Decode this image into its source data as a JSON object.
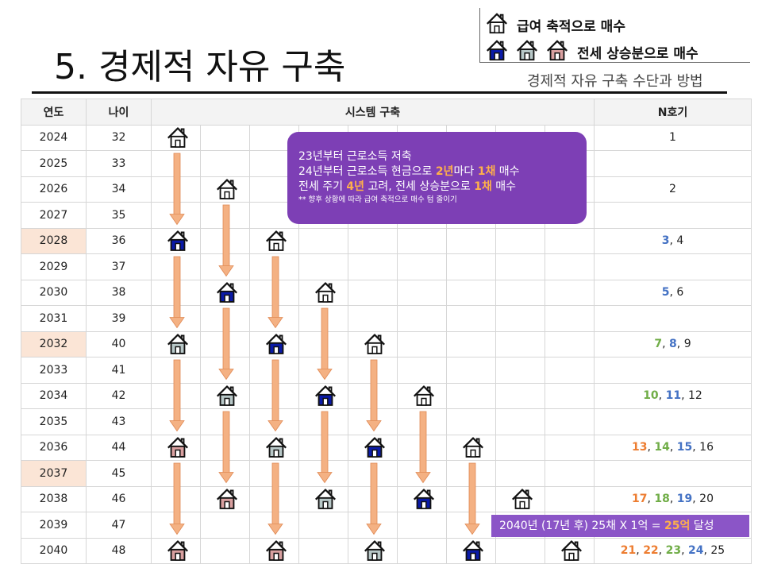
{
  "slide": {
    "title": "5. 경제적 자유 구축",
    "subtitle": "경제적 자유 구축 수단과 방법"
  },
  "legend": {
    "row1_text": "급여 축적으로 매수",
    "row2_text": "전세 상승분으로 매수"
  },
  "table": {
    "headers": {
      "year": "연도",
      "age": "나이",
      "system": "시스템 구축",
      "n": "N호기"
    },
    "rows": [
      {
        "year": "2024",
        "age": "32",
        "hl": false,
        "n": [
          [
            "1",
            "k"
          ]
        ]
      },
      {
        "year": "2025",
        "age": "33",
        "hl": false,
        "n": []
      },
      {
        "year": "2026",
        "age": "34",
        "hl": false,
        "n": [
          [
            "2",
            "k"
          ]
        ]
      },
      {
        "year": "2027",
        "age": "35",
        "hl": false,
        "n": []
      },
      {
        "year": "2028",
        "age": "36",
        "hl": true,
        "n": [
          [
            "3",
            "bl"
          ],
          [
            "4",
            "k"
          ]
        ]
      },
      {
        "year": "2029",
        "age": "37",
        "hl": false,
        "n": []
      },
      {
        "year": "2030",
        "age": "38",
        "hl": false,
        "n": [
          [
            "5",
            "bl"
          ],
          [
            "6",
            "k"
          ]
        ]
      },
      {
        "year": "2031",
        "age": "39",
        "hl": false,
        "n": []
      },
      {
        "year": "2032",
        "age": "40",
        "hl": true,
        "n": [
          [
            "7",
            "gr"
          ],
          [
            "8",
            "bl"
          ],
          [
            "9",
            "k"
          ]
        ]
      },
      {
        "year": "2033",
        "age": "41",
        "hl": false,
        "n": []
      },
      {
        "year": "2034",
        "age": "42",
        "hl": false,
        "n": [
          [
            "10",
            "gr"
          ],
          [
            "11",
            "bl"
          ],
          [
            "12",
            "k"
          ]
        ]
      },
      {
        "year": "2035",
        "age": "43",
        "hl": false,
        "n": []
      },
      {
        "year": "2036",
        "age": "44",
        "hl": false,
        "n": [
          [
            "13",
            "or"
          ],
          [
            "14",
            "gr"
          ],
          [
            "15",
            "bl"
          ],
          [
            "16",
            "k"
          ]
        ]
      },
      {
        "year": "2037",
        "age": "45",
        "hl": true,
        "n": []
      },
      {
        "year": "2038",
        "age": "46",
        "hl": false,
        "n": [
          [
            "17",
            "or"
          ],
          [
            "18",
            "gr"
          ],
          [
            "19",
            "bl"
          ],
          [
            "20",
            "k"
          ]
        ]
      },
      {
        "year": "2039",
        "age": "47",
        "hl": false,
        "n": []
      },
      {
        "year": "2040",
        "age": "48",
        "hl": false,
        "n": [
          [
            "21",
            "or"
          ],
          [
            "22",
            "or"
          ],
          [
            "23",
            "gr"
          ],
          [
            "24",
            "bl"
          ],
          [
            "25",
            "k"
          ]
        ]
      }
    ]
  },
  "note": {
    "line1": "23년부터 근로소득 저축",
    "line2_a": "24년부터 근로소득 현금으로 ",
    "line2_b": "2년",
    "line2_c": "마다 ",
    "line2_d": "1채",
    "line2_e": " 매수",
    "line3_a": "전세 주기 ",
    "line3_b": "4년",
    "line3_c": " 고려, 전세 상승분으로 ",
    "line3_d": "1채",
    "line3_e": " 매수",
    "line4": "** 향후 상황에 따라 급여 축적으로 매수 텀 줄이기"
  },
  "goal": {
    "text_a": "2040년 (17년  후) 25채 X 1억 = ",
    "text_b": "25억",
    "text_c": " 달성"
  },
  "colors": {
    "white_house": "#ffffff",
    "blue_house": "#0a1aa8",
    "gray_house": "#b8c8c8",
    "pink_house": "#d9a0a0",
    "arrow": "#f4b183",
    "note_bg": "#7d3fb5"
  },
  "houses": [
    {
      "row": 0,
      "col": 0,
      "type": "white"
    },
    {
      "row": 2,
      "col": 1,
      "type": "white"
    },
    {
      "row": 4,
      "col": 0,
      "type": "blue"
    },
    {
      "row": 4,
      "col": 2,
      "type": "white"
    },
    {
      "row": 6,
      "col": 1,
      "type": "blue"
    },
    {
      "row": 6,
      "col": 3,
      "type": "white"
    },
    {
      "row": 8,
      "col": 0,
      "type": "gray"
    },
    {
      "row": 8,
      "col": 2,
      "type": "blue"
    },
    {
      "row": 8,
      "col": 4,
      "type": "white"
    },
    {
      "row": 10,
      "col": 1,
      "type": "gray"
    },
    {
      "row": 10,
      "col": 3,
      "type": "blue"
    },
    {
      "row": 10,
      "col": 5,
      "type": "white"
    },
    {
      "row": 12,
      "col": 0,
      "type": "pink"
    },
    {
      "row": 12,
      "col": 2,
      "type": "gray"
    },
    {
      "row": 12,
      "col": 4,
      "type": "blue"
    },
    {
      "row": 12,
      "col": 6,
      "type": "white"
    },
    {
      "row": 14,
      "col": 1,
      "type": "pink"
    },
    {
      "row": 14,
      "col": 3,
      "type": "gray"
    },
    {
      "row": 14,
      "col": 5,
      "type": "blue"
    },
    {
      "row": 14,
      "col": 7,
      "type": "white"
    },
    {
      "row": 16,
      "col": 0,
      "type": "pink"
    },
    {
      "row": 16,
      "col": 2,
      "type": "pink"
    },
    {
      "row": 16,
      "col": 4,
      "type": "gray"
    },
    {
      "row": 16,
      "col": 6,
      "type": "blue"
    },
    {
      "row": 16,
      "col": 8,
      "type": "white"
    }
  ],
  "arrows": [
    {
      "col": 0,
      "from": 0,
      "to": 4
    },
    {
      "col": 0,
      "from": 4,
      "to": 8
    },
    {
      "col": 0,
      "from": 8,
      "to": 12
    },
    {
      "col": 0,
      "from": 12,
      "to": 16
    },
    {
      "col": 1,
      "from": 2,
      "to": 6
    },
    {
      "col": 1,
      "from": 6,
      "to": 10
    },
    {
      "col": 1,
      "from": 10,
      "to": 14
    },
    {
      "col": 2,
      "from": 4,
      "to": 8
    },
    {
      "col": 2,
      "from": 8,
      "to": 12
    },
    {
      "col": 2,
      "from": 12,
      "to": 16
    },
    {
      "col": 3,
      "from": 6,
      "to": 10
    },
    {
      "col": 3,
      "from": 10,
      "to": 14
    },
    {
      "col": 4,
      "from": 8,
      "to": 12
    },
    {
      "col": 4,
      "from": 12,
      "to": 16
    },
    {
      "col": 5,
      "from": 10,
      "to": 14
    },
    {
      "col": 6,
      "from": 12,
      "to": 16
    }
  ]
}
